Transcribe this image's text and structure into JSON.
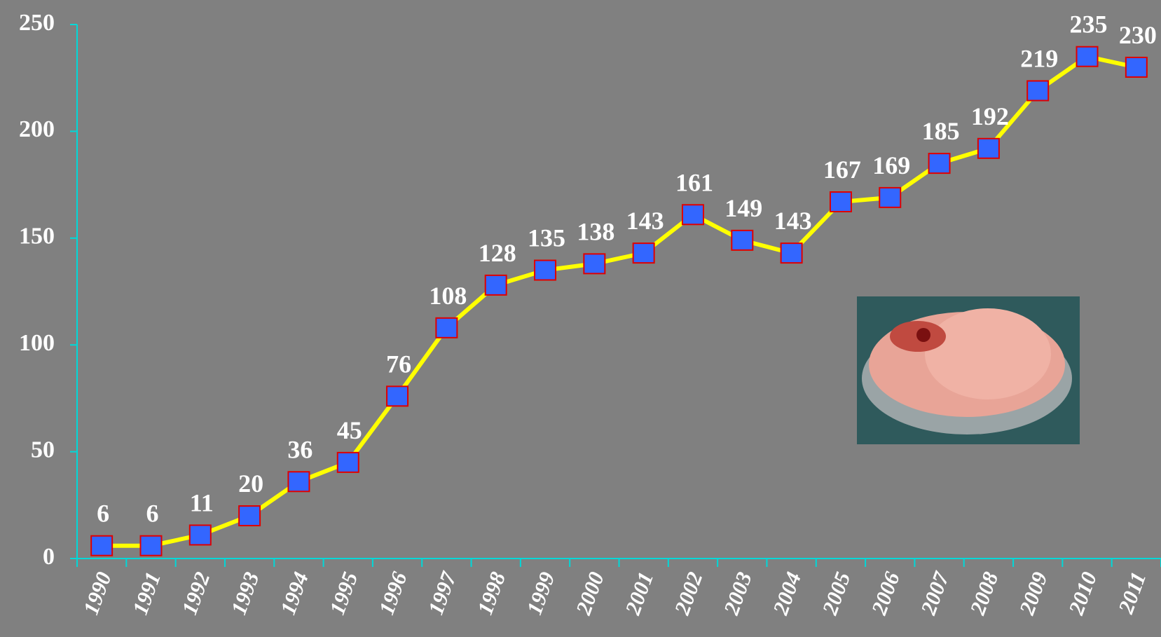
{
  "chart_data": {
    "type": "line",
    "categories": [
      "1990",
      "1991",
      "1992",
      "1993",
      "1994",
      "1995",
      "1996",
      "1997",
      "1998",
      "1999",
      "2000",
      "2001",
      "2002",
      "2003",
      "2004",
      "2005",
      "2006",
      "2007",
      "2008",
      "2009",
      "2010",
      "2011"
    ],
    "values": [
      6,
      6,
      11,
      20,
      36,
      45,
      76,
      108,
      128,
      135,
      138,
      143,
      161,
      149,
      143,
      167,
      169,
      185,
      192,
      219,
      235,
      230
    ],
    "color": "#ffff00",
    "marker_color": "#3366ff",
    "marker_edge_color": "#e00000",
    "ylim": [
      0,
      250
    ],
    "yticks": [
      0,
      50,
      100,
      150,
      200,
      250
    ]
  }
}
